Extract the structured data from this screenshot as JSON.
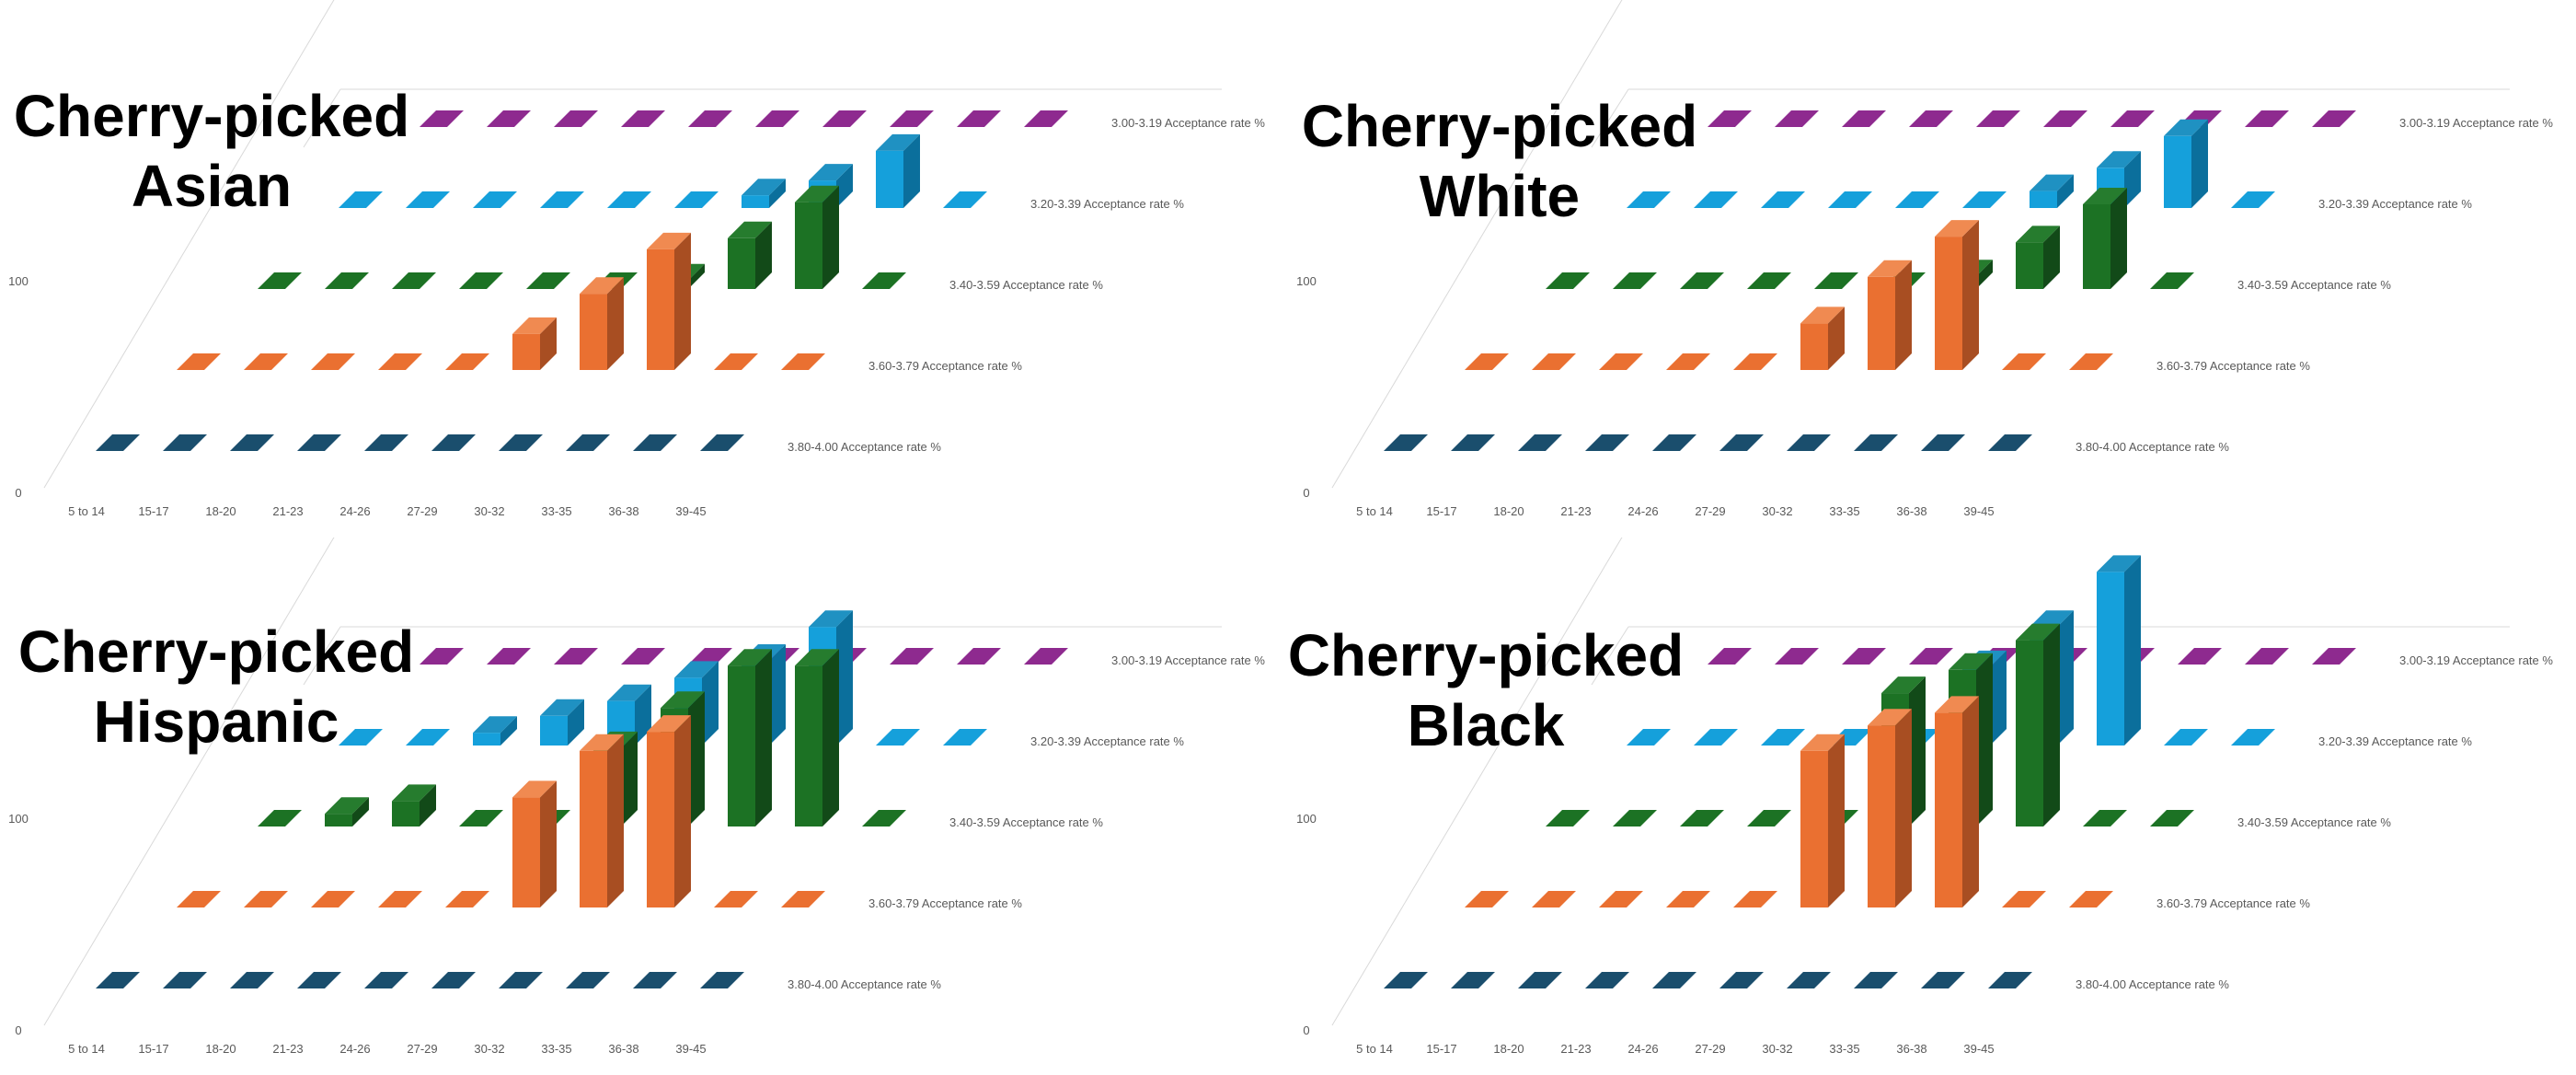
{
  "colors": {
    "3.80-4.00 Acceptance rate %": {
      "front": "#1a4e6d",
      "side": "#103a52",
      "top": "#275f80"
    },
    "3.60-3.79 Acceptance rate %": {
      "front": "#ea7031",
      "side": "#a84e22",
      "top": "#f08a51"
    },
    "3.40-3.59 Acceptance rate %": {
      "front": "#1c7224",
      "side": "#124a18",
      "top": "#267c2e"
    },
    "3.20-3.39 Acceptance rate %": {
      "front": "#15a0db",
      "side": "#0b6f9c",
      "top": "#1f91c2"
    },
    "3.00-3.19 Acceptance rate %": {
      "front": "#8e2a8f",
      "side": "#661e66",
      "top": "#8e2a8f"
    },
    "gridline": "#d9d9d9",
    "tick": "#595959"
  },
  "chart_data": [
    {
      "type": "bar",
      "title": "Cherry-picked\nAsian",
      "categories": [
        "5 to 14",
        "15-17",
        "18-20",
        "21-23",
        "24-26",
        "27-29",
        "30-32",
        "33-35",
        "36-38",
        "39-45"
      ],
      "zticks": [
        "0",
        "100"
      ],
      "zlim": [
        0,
        200
      ],
      "series": [
        {
          "name": "3.80-4.00 Acceptance rate %",
          "values": [
            0,
            0,
            0,
            0,
            0,
            0,
            0,
            0,
            0,
            0
          ]
        },
        {
          "name": "3.60-3.79 Acceptance rate %",
          "values": [
            0,
            0,
            0,
            0,
            0,
            17,
            36,
            57,
            0,
            0
          ]
        },
        {
          "name": "3.40-3.59 Acceptance rate %",
          "values": [
            0,
            0,
            0,
            0,
            0,
            0,
            4,
            24,
            41,
            0
          ]
        },
        {
          "name": "3.20-3.39 Acceptance rate %",
          "values": [
            0,
            0,
            0,
            0,
            0,
            0,
            6,
            13,
            27,
            0
          ]
        },
        {
          "name": "3.00-3.19 Acceptance rate %",
          "values": [
            0,
            0,
            0,
            0,
            0,
            0,
            0,
            0,
            0,
            0
          ]
        }
      ]
    },
    {
      "type": "bar",
      "title": "Cherry-picked\nWhite",
      "categories": [
        "5 to 14",
        "15-17",
        "18-20",
        "21-23",
        "24-26",
        "27-29",
        "30-32",
        "33-35",
        "36-38",
        "39-45"
      ],
      "zticks": [
        "0",
        "100"
      ],
      "zlim": [
        0,
        200
      ],
      "series": [
        {
          "name": "3.80-4.00 Acceptance rate %",
          "values": [
            0,
            0,
            0,
            0,
            0,
            0,
            0,
            0,
            0,
            0
          ]
        },
        {
          "name": "3.60-3.79 Acceptance rate %",
          "values": [
            0,
            0,
            0,
            0,
            0,
            22,
            44,
            63,
            0,
            0
          ]
        },
        {
          "name": "3.40-3.59 Acceptance rate %",
          "values": [
            0,
            0,
            0,
            0,
            0,
            0,
            6,
            22,
            40,
            0
          ]
        },
        {
          "name": "3.20-3.39 Acceptance rate %",
          "values": [
            0,
            0,
            0,
            0,
            0,
            0,
            8,
            19,
            34,
            0
          ]
        },
        {
          "name": "3.00-3.19 Acceptance rate %",
          "values": [
            0,
            0,
            0,
            0,
            0,
            0,
            0,
            0,
            0,
            0
          ]
        }
      ]
    },
    {
      "type": "bar",
      "title": "Cherry-picked\nHispanic",
      "categories": [
        "5 to 14",
        "15-17",
        "18-20",
        "21-23",
        "24-26",
        "27-29",
        "30-32",
        "33-35",
        "36-38",
        "39-45"
      ],
      "zticks": [
        "0",
        "100"
      ],
      "zlim": [
        0,
        200
      ],
      "series": [
        {
          "name": "3.80-4.00 Acceptance rate %",
          "values": [
            0,
            0,
            0,
            0,
            0,
            0,
            0,
            0,
            0,
            0
          ]
        },
        {
          "name": "3.60-3.79 Acceptance rate %",
          "values": [
            0,
            0,
            0,
            0,
            0,
            52,
            74,
            83,
            0,
            0
          ]
        },
        {
          "name": "3.40-3.59 Acceptance rate %",
          "values": [
            0,
            6,
            12,
            0,
            0,
            37,
            56,
            76,
            76,
            0
          ]
        },
        {
          "name": "3.20-3.39 Acceptance rate %",
          "values": [
            0,
            0,
            6,
            14,
            21,
            32,
            40,
            56,
            0,
            0
          ]
        },
        {
          "name": "3.00-3.19 Acceptance rate %",
          "values": [
            0,
            0,
            0,
            0,
            0,
            0,
            0,
            0,
            0,
            0
          ]
        }
      ]
    },
    {
      "type": "bar",
      "title": "Cherry-picked\nBlack",
      "categories": [
        "5 to 14",
        "15-17",
        "18-20",
        "21-23",
        "24-26",
        "27-29",
        "30-32",
        "33-35",
        "36-38",
        "39-45"
      ],
      "zticks": [
        "0",
        "100"
      ],
      "zlim": [
        0,
        200
      ],
      "series": [
        {
          "name": "3.80-4.00 Acceptance rate %",
          "values": [
            0,
            0,
            0,
            0,
            0,
            0,
            0,
            0,
            0,
            0
          ]
        },
        {
          "name": "3.60-3.79 Acceptance rate %",
          "values": [
            0,
            0,
            0,
            0,
            0,
            74,
            86,
            92,
            0,
            0
          ]
        },
        {
          "name": "3.40-3.59 Acceptance rate %",
          "values": [
            0,
            0,
            0,
            0,
            0,
            63,
            74,
            88,
            0,
            0
          ]
        },
        {
          "name": "3.20-3.39 Acceptance rate %",
          "values": [
            0,
            0,
            0,
            0,
            0,
            37,
            56,
            82,
            0,
            0
          ]
        },
        {
          "name": "3.00-3.19 Acceptance rate %",
          "values": [
            0,
            0,
            0,
            0,
            0,
            0,
            0,
            0,
            0,
            0
          ]
        }
      ]
    }
  ]
}
